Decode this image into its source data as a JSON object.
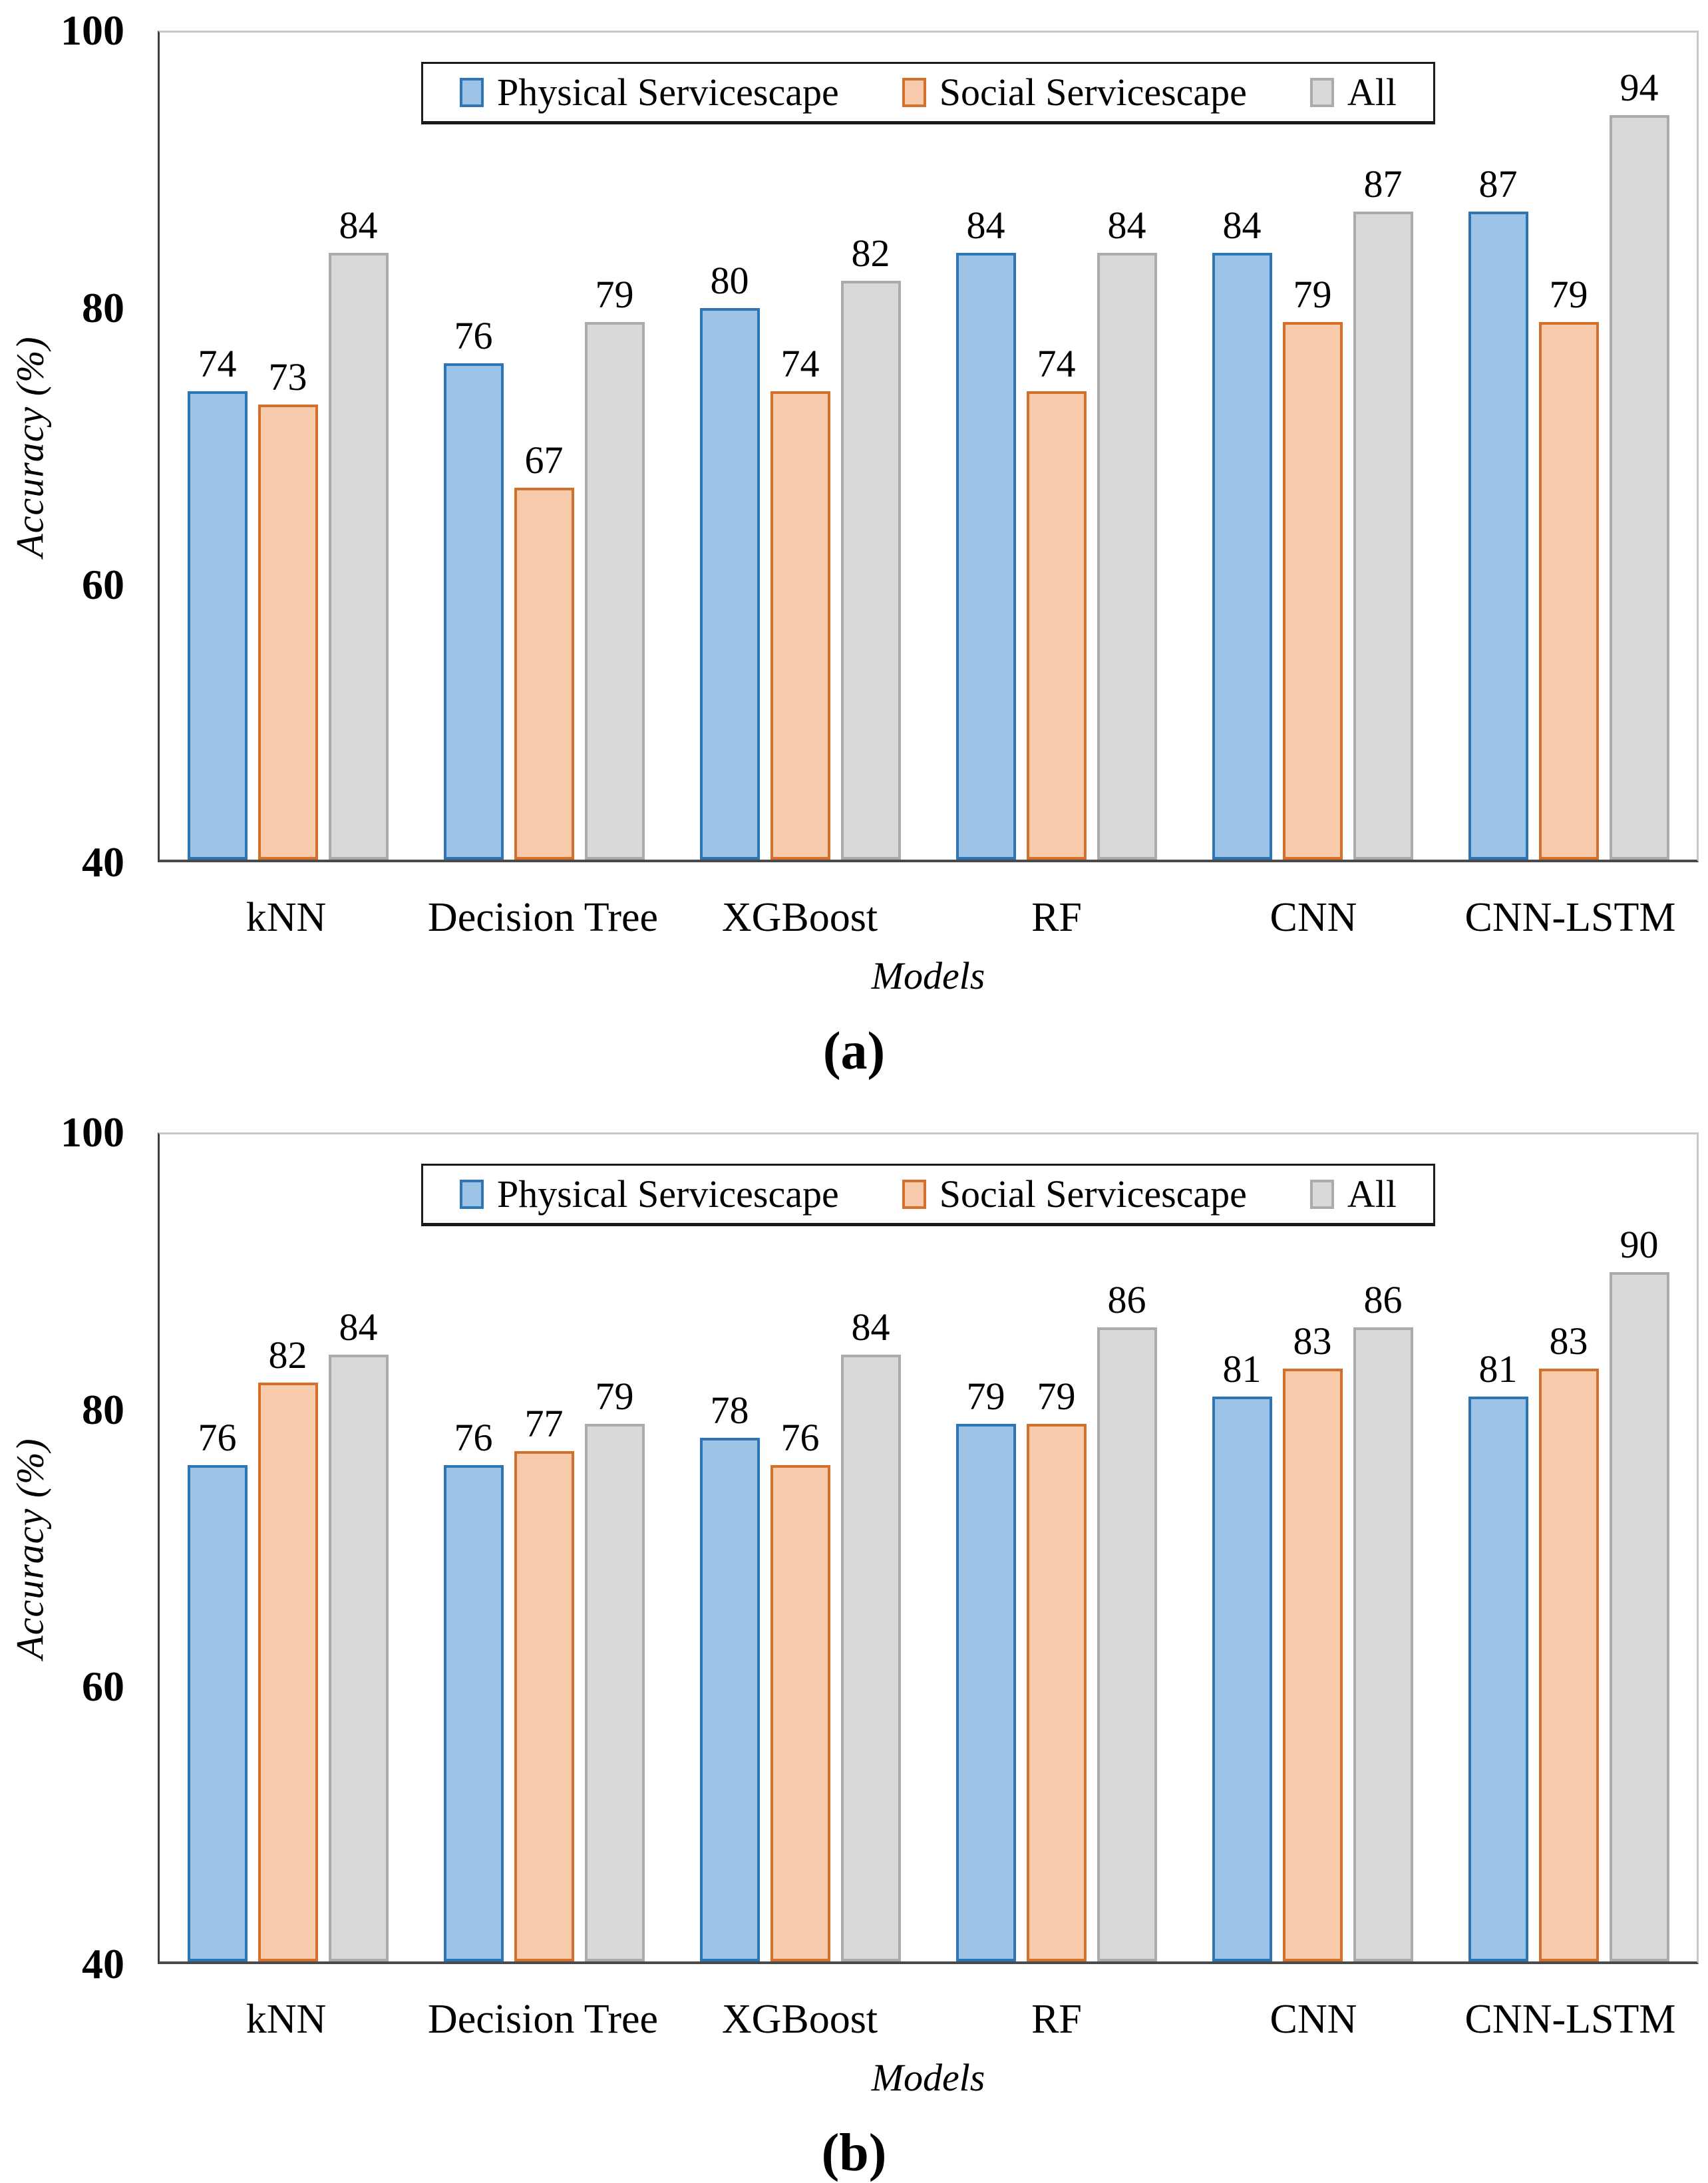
{
  "colors": {
    "axis_dark": "#3f3f3f",
    "plot_border_light": "#c8c8c8",
    "legend_border": "#1a1a1a",
    "text": "#000000",
    "background": "#ffffff"
  },
  "series_style": [
    {
      "fill": "#9DC3E6",
      "border": "#2E75B6"
    },
    {
      "fill": "#F8CBAD",
      "border": "#D2702C"
    },
    {
      "fill": "#D9D9D9",
      "border": "#ABABAB"
    }
  ],
  "chart_data": [
    {
      "type": "bar",
      "panel_label": "(a)",
      "xlabel": "Models",
      "ylabel": "Accuracy (%)",
      "ylim": [
        40,
        100
      ],
      "yticks": [
        100,
        80,
        60,
        40
      ],
      "grid": false,
      "legend_position": "top-center-inside",
      "categories": [
        "kNN",
        "Decision Tree",
        "XGBoost",
        "RF",
        "CNN",
        "CNN-LSTM"
      ],
      "series": [
        {
          "name": "Physical Servicescape",
          "values": [
            74,
            76,
            80,
            84,
            84,
            87
          ]
        },
        {
          "name": "Social Servicescape",
          "values": [
            73,
            67,
            74,
            74,
            79,
            79
          ]
        },
        {
          "name": "All",
          "values": [
            84,
            79,
            82,
            84,
            87,
            94
          ]
        }
      ]
    },
    {
      "type": "bar",
      "panel_label": "(b)",
      "xlabel": "Models",
      "ylabel": "Accuracy (%)",
      "ylim": [
        40,
        100
      ],
      "yticks": [
        100,
        80,
        60,
        40
      ],
      "grid": false,
      "legend_position": "top-center-inside",
      "categories": [
        "kNN",
        "Decision Tree",
        "XGBoost",
        "RF",
        "CNN",
        "CNN-LSTM"
      ],
      "series": [
        {
          "name": "Physical Servicescape",
          "values": [
            76,
            76,
            78,
            79,
            81,
            81
          ]
        },
        {
          "name": "Social Servicescape",
          "values": [
            82,
            77,
            76,
            79,
            83,
            83
          ]
        },
        {
          "name": "All",
          "values": [
            84,
            79,
            84,
            86,
            86,
            90
          ]
        }
      ]
    }
  ]
}
